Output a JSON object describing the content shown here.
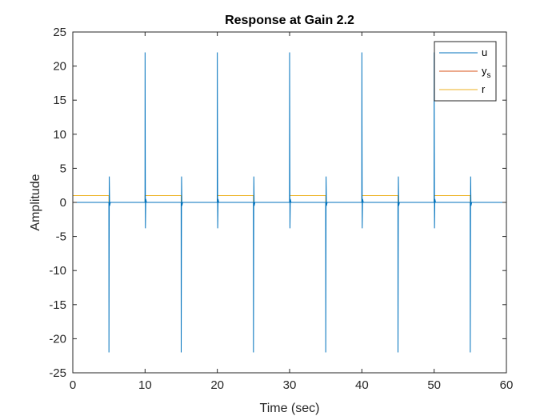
{
  "chart_data": {
    "type": "line",
    "title": "Response at Gain 2.2",
    "xlabel": "Time (sec)",
    "ylabel": "Amplitude",
    "xlim": [
      0,
      60
    ],
    "ylim": [
      -25,
      25
    ],
    "xticks": [
      0,
      10,
      20,
      30,
      40,
      50,
      60
    ],
    "yticks": [
      -25,
      -20,
      -15,
      -10,
      -5,
      0,
      5,
      10,
      15,
      20,
      25
    ],
    "grid": false,
    "legend_position": "top-right",
    "series": [
      {
        "name": "u",
        "color": "#0072BD",
        "x": [
          0,
          4.99,
          5.0,
          5.05,
          5.1,
          5.2,
          9.99,
          10.0,
          10.05,
          10.1,
          10.2,
          14.99,
          15.0,
          15.05,
          15.1,
          15.2,
          19.99,
          20.0,
          20.05,
          20.1,
          20.2,
          24.99,
          25.0,
          25.05,
          25.1,
          25.2,
          29.99,
          30.0,
          30.05,
          30.1,
          30.2,
          34.99,
          35.0,
          35.05,
          35.1,
          35.2,
          39.99,
          40.0,
          40.05,
          40.1,
          40.2,
          44.99,
          45.0,
          45.05,
          45.1,
          45.2,
          49.99,
          50.0,
          50.05,
          50.1,
          50.2,
          54.99,
          55.0,
          55.05,
          55.1,
          55.2,
          60
        ],
        "y": [
          0,
          0,
          -22,
          3.8,
          -0.5,
          0,
          0,
          22,
          -3.8,
          0.5,
          0,
          0,
          -22,
          3.8,
          -0.5,
          0,
          0,
          22,
          -3.8,
          0.5,
          0,
          0,
          -22,
          3.8,
          -0.5,
          0,
          0,
          22,
          -3.8,
          0.5,
          0,
          0,
          -22,
          3.8,
          -0.5,
          0,
          0,
          22,
          -3.8,
          0.5,
          0,
          0,
          -22,
          3.8,
          -0.5,
          0,
          0,
          22,
          -3.8,
          0.5,
          0,
          0,
          -22,
          3.8,
          -0.5,
          0,
          0
        ]
      },
      {
        "name": "y_s",
        "legend_base": "y",
        "legend_sub": "s",
        "color": "#D95319",
        "x": [
          0,
          60
        ],
        "y": [
          0,
          0
        ]
      },
      {
        "name": "r",
        "color": "#EDB120",
        "x": [
          0,
          5,
          5,
          10,
          10,
          15,
          15,
          20,
          20,
          25,
          25,
          30,
          30,
          35,
          35,
          40,
          40,
          45,
          45,
          50,
          50,
          55,
          55,
          60
        ],
        "y": [
          1,
          1,
          0,
          0,
          1,
          1,
          0,
          0,
          1,
          1,
          0,
          0,
          1,
          1,
          0,
          0,
          1,
          1,
          0,
          0,
          1,
          1,
          0,
          0
        ]
      }
    ]
  }
}
